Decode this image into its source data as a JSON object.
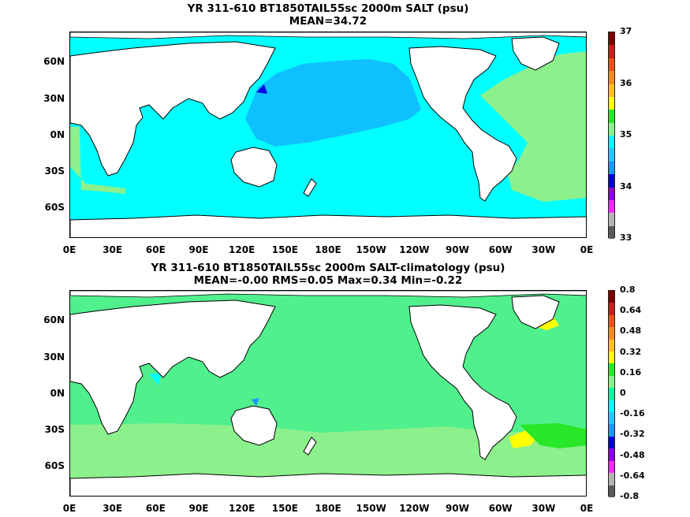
{
  "panels": [
    {
      "id": "salt",
      "title_line1": "YR 311-610 BT1850TAIL55sc 2000m SALT (psu)",
      "title_line2": "MEAN=34.72",
      "colorbar_labels": [
        "37",
        "36",
        "35",
        "34",
        "33"
      ],
      "colorbar_colors": [
        "#7a0000",
        "#c81e1e",
        "#f0501e",
        "#f08c28",
        "#ffbe28",
        "#ffff00",
        "#28e628",
        "#8cf08c",
        "#00ffff",
        "#28c8ff",
        "#1e96ff",
        "#0000e6",
        "#8c00e6",
        "#ff28ff",
        "#b4b4b4",
        "#5a5a5a"
      ],
      "field_colors": {
        "pacific": "#0fc0ff",
        "ocean": "#00ffff",
        "atlantic": "#8cf08c"
      }
    },
    {
      "id": "diff",
      "title_line1": "YR 311-610 BT1850TAIL55sc 2000m SALT-climatology (psu)",
      "title_line2": "MEAN=-0.00   RMS=0.05   Max=0.34   Min=-0.22",
      "colorbar_labels": [
        "0.8",
        "0.64",
        "0.48",
        "0.32",
        "0.16",
        "0",
        "-0.16",
        "-0.32",
        "-0.48",
        "-0.64",
        "-0.8"
      ],
      "colorbar_colors": [
        "#7a0000",
        "#c81e1e",
        "#f0501e",
        "#f08c28",
        "#ffbe28",
        "#ffff00",
        "#28e628",
        "#8cf08c",
        "#00ffa0",
        "#00ffff",
        "#28c8ff",
        "#1e96ff",
        "#0000e6",
        "#8c00e6",
        "#ff28ff",
        "#b4b4b4",
        "#5a5a5a"
      ],
      "field_colors": {
        "ocean": "#50f08c",
        "south": "#8cf08c",
        "atlantic": "#50f08c",
        "hot": "#ffff00"
      }
    }
  ],
  "lat_labels": [
    "60N",
    "30N",
    "0N",
    "30S",
    "60S"
  ],
  "lon_labels": [
    "0E",
    "30E",
    "60E",
    "90E",
    "120E",
    "150E",
    "180E",
    "150W",
    "120W",
    "90W",
    "60W",
    "30W",
    "0E"
  ]
}
